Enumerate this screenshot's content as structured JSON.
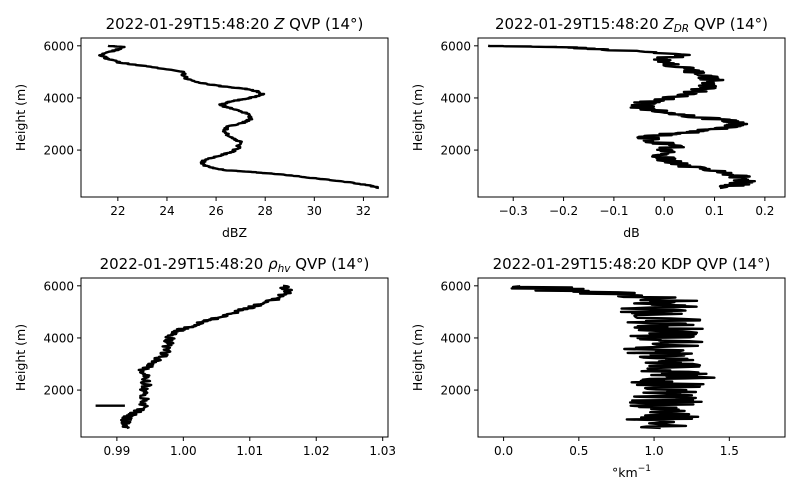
{
  "chart_data": [
    {
      "type": "line",
      "title": "2022-01-29T15:48:20 Z QVP (14°)",
      "title_parts": {
        "prefix": "2022-01-29T15:48:20 ",
        "var": "Z",
        "var_sub": "",
        "suffix": " QVP (14°)"
      },
      "xlabel": "dBZ",
      "xlabel_parts": {
        "base": "dBZ",
        "sup": ""
      },
      "ylabel": "Height (m)",
      "xlim": [
        20.5,
        33.0
      ],
      "ylim": [
        200,
        6300
      ],
      "xticks": [
        22,
        24,
        26,
        28,
        30,
        32
      ],
      "xtick_labels": [
        "22",
        "24",
        "26",
        "28",
        "30",
        "32"
      ],
      "yticks": [
        2000,
        4000,
        6000
      ],
      "ytick_labels": [
        "2000",
        "4000",
        "6000"
      ],
      "series": [
        {
          "color": "#000000",
          "noise": 0.1,
          "x": [
            32.6,
            32.2,
            31.3,
            30.0,
            28.8,
            27.6,
            26.4,
            25.7,
            25.4,
            25.6,
            26.2,
            26.7,
            26.9,
            27.0,
            26.6,
            26.3,
            26.5,
            27.1,
            27.4,
            27.3,
            26.8,
            26.4,
            26.2,
            26.5,
            27.1,
            27.6,
            27.9,
            27.7,
            27.2,
            26.2,
            25.2,
            24.8,
            24.6,
            23.3,
            22.1,
            21.6,
            21.3,
            21.8,
            22.3,
            21.6
          ],
          "y": [
            550,
            650,
            780,
            920,
            1050,
            1150,
            1230,
            1350,
            1500,
            1650,
            1800,
            1950,
            2100,
            2300,
            2500,
            2700,
            2900,
            3050,
            3200,
            3400,
            3550,
            3650,
            3750,
            3850,
            3950,
            4050,
            4150,
            4250,
            4350,
            4450,
            4600,
            4750,
            5000,
            5200,
            5350,
            5500,
            5650,
            5800,
            5950,
            6000
          ]
        }
      ]
    },
    {
      "type": "line",
      "title": "2022-01-29T15:48:20 ZDR QVP (14°)",
      "title_parts": {
        "prefix": "2022-01-29T15:48:20 ",
        "var": "Z",
        "var_sub": "DR",
        "suffix": " QVP (14°)"
      },
      "xlabel": "dB",
      "xlabel_parts": {
        "base": "dB",
        "sup": ""
      },
      "ylabel": "Height (m)",
      "xlim": [
        -0.37,
        0.24
      ],
      "ylim": [
        200,
        6300
      ],
      "xticks": [
        -0.3,
        -0.2,
        -0.1,
        0.0,
        0.1,
        0.2
      ],
      "xtick_labels": [
        "−0.3",
        "−0.2",
        "−0.1",
        "0.0",
        "0.1",
        "0.2"
      ],
      "yticks": [
        2000,
        4000,
        6000
      ],
      "ytick_labels": [
        "2000",
        "4000",
        "6000"
      ],
      "series": [
        {
          "color": "#000000",
          "noise": 0.025,
          "x": [
            0.12,
            0.15,
            0.16,
            0.15,
            0.11,
            0.05,
            0.02,
            -0.01,
            0.0,
            0.02,
            -0.02,
            -0.03,
            0.0,
            0.06,
            0.12,
            0.15,
            0.12,
            0.05,
            0.0,
            -0.04,
            -0.05,
            -0.02,
            0.02,
            0.06,
            0.09,
            0.1,
            0.08,
            0.05,
            0.02,
            -0.01,
            0.03,
            -0.1,
            -0.2,
            -0.35
          ],
          "y": [
            550,
            700,
            850,
            1000,
            1150,
            1350,
            1550,
            1750,
            1950,
            2150,
            2350,
            2500,
            2600,
            2700,
            2850,
            3000,
            3150,
            3300,
            3450,
            3600,
            3750,
            3900,
            4050,
            4250,
            4450,
            4650,
            4850,
            5050,
            5250,
            5450,
            5650,
            5850,
            5950,
            6000
          ]
        }
      ]
    },
    {
      "type": "line",
      "title": "2022-01-29T15:48:20 ρhv QVP (14°)",
      "title_parts": {
        "prefix": "2022-01-29T15:48:20 ",
        "var": "ρ",
        "var_sub": "hv",
        "suffix": " QVP (14°)"
      },
      "xlabel": "",
      "xlabel_parts": {
        "base": "",
        "sup": ""
      },
      "ylabel": "Height (m)",
      "xlim": [
        0.9846,
        1.0308
      ],
      "ylim": [
        200,
        6300
      ],
      "xticks": [
        0.99,
        1.0,
        1.01,
        1.02,
        1.03
      ],
      "xtick_labels": [
        "0.99",
        "1.00",
        "1.01",
        "1.02",
        "1.03"
      ],
      "yticks": [
        2000,
        4000,
        6000
      ],
      "ytick_labels": [
        "2000",
        "4000",
        "6000"
      ],
      "series": [
        {
          "color": "#000000",
          "noise": 0.0008,
          "x": [
            0.9915,
            0.9912,
            0.9914,
            0.9918,
            0.993,
            0.9938,
            0.9945,
            0.994,
            0.9945,
            0.9942,
            0.994,
            0.9955,
            0.9968,
            0.9975,
            0.9978,
            0.998,
            0.9985,
            0.9995,
            1.001,
            1.0035,
            1.006,
            1.0085,
            1.011,
            1.0135,
            1.015,
            1.016,
            1.015
          ],
          "y": [
            550,
            700,
            850,
            1000,
            1150,
            1300,
            1600,
            1900,
            2200,
            2500,
            2800,
            3050,
            3300,
            3550,
            3800,
            4000,
            4150,
            4300,
            4450,
            4650,
            4850,
            5050,
            5250,
            5450,
            5650,
            5800,
            6000
          ]
        },
        {
          "color": "#000000",
          "noise": 0,
          "x": [
            0.9868,
            0.9912
          ],
          "y": [
            1400,
            1400
          ]
        }
      ]
    },
    {
      "type": "line",
      "title": "2022-01-29T15:48:20 KDP QVP (14°)",
      "title_parts": {
        "prefix": "2022-01-29T15:48:20 KDP QVP (14°)",
        "var": "",
        "var_sub": "",
        "suffix": ""
      },
      "xlabel": "°km−1",
      "xlabel_parts": {
        "base": "°km",
        "sup": "−1"
      },
      "ylabel": "Height (m)",
      "xlim": [
        -0.17,
        1.87
      ],
      "ylim": [
        200,
        6300
      ],
      "xticks": [
        0.0,
        0.5,
        1.0,
        1.5
      ],
      "xtick_labels": [
        "0.0",
        "0.5",
        "1.0",
        "1.5"
      ],
      "yticks": [
        2000,
        4000,
        6000
      ],
      "ytick_labels": [
        "2000",
        "4000",
        "6000"
      ],
      "series": [
        {
          "color": "#000000",
          "noise": 0.25,
          "x": [
            1.05,
            1.0,
            1.1,
            1.0,
            1.1,
            1.05,
            1.15,
            1.1,
            1.2,
            1.1,
            1.05,
            1.1,
            1.0,
            1.1,
            1.05,
            1.1,
            1.05,
            1.1,
            1.0,
            1.1,
            1.05,
            0.5,
            0.1
          ],
          "y": [
            550,
            800,
            1050,
            1300,
            1550,
            1800,
            2050,
            2300,
            2550,
            2800,
            3050,
            3300,
            3550,
            3800,
            4050,
            4300,
            4550,
            4800,
            5050,
            5300,
            5550,
            5800,
            6000
          ]
        }
      ]
    }
  ]
}
